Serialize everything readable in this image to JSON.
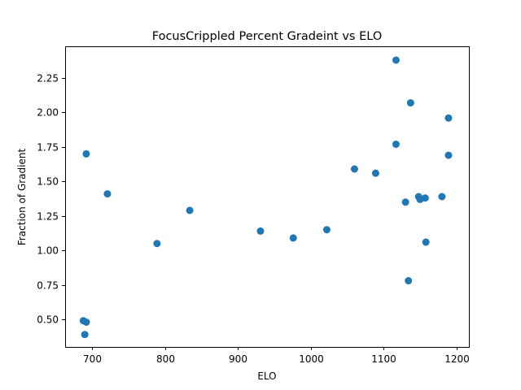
{
  "chart_data": {
    "type": "scatter",
    "title": "FocusCrippled Percent Gradeint vs ELO",
    "xlabel": "ELO",
    "ylabel": "Fraction of Gradient",
    "xlim": [
      663,
      1217
    ],
    "ylim": [
      0.3,
      2.48
    ],
    "xticks": [
      700,
      800,
      900,
      1000,
      1100,
      1200
    ],
    "xtick_labels": [
      "700",
      "800",
      "900",
      "1000",
      "1100",
      "1200"
    ],
    "yticks": [
      0.5,
      0.75,
      1.0,
      1.25,
      1.5,
      1.75,
      2.0,
      2.25
    ],
    "ytick_labels": [
      "0.50",
      "0.75",
      "1.00",
      "1.25",
      "1.50",
      "1.75",
      "2.00",
      "2.25"
    ],
    "grid": false,
    "color": "#1f77b4",
    "series": [
      {
        "points": [
          {
            "x": 688,
            "y": 0.49
          },
          {
            "x": 692,
            "y": 0.48
          },
          {
            "x": 690,
            "y": 0.39
          },
          {
            "x": 692,
            "y": 1.7
          },
          {
            "x": 721,
            "y": 1.41
          },
          {
            "x": 789,
            "y": 1.05
          },
          {
            "x": 834,
            "y": 1.29
          },
          {
            "x": 931,
            "y": 1.14
          },
          {
            "x": 976,
            "y": 1.09
          },
          {
            "x": 1022,
            "y": 1.15
          },
          {
            "x": 1060,
            "y": 1.59
          },
          {
            "x": 1089,
            "y": 1.56
          },
          {
            "x": 1117,
            "y": 2.38
          },
          {
            "x": 1117,
            "y": 1.77
          },
          {
            "x": 1130,
            "y": 1.35
          },
          {
            "x": 1134,
            "y": 0.78
          },
          {
            "x": 1137,
            "y": 2.07
          },
          {
            "x": 1148,
            "y": 1.39
          },
          {
            "x": 1150,
            "y": 1.37
          },
          {
            "x": 1157,
            "y": 1.38
          },
          {
            "x": 1158,
            "y": 1.06
          },
          {
            "x": 1180,
            "y": 1.39
          },
          {
            "x": 1189,
            "y": 1.96
          },
          {
            "x": 1189,
            "y": 1.69
          }
        ]
      }
    ]
  }
}
